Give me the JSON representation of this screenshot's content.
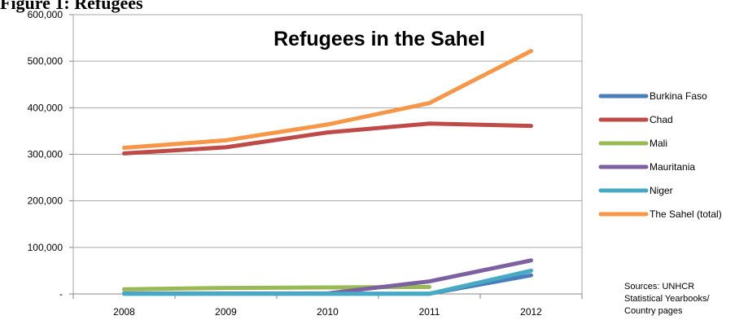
{
  "figure_heading": "Figure 1: Refugees",
  "sources": {
    "line1": "Sources: UNHCR",
    "line2": "Statistical Yearbooks/",
    "line3": "Country pages"
  },
  "chart_data": {
    "type": "line",
    "title": "Refugees in the Sahel",
    "xlabel": "",
    "ylabel": "",
    "categories": [
      "2008",
      "2009",
      "2010",
      "2011",
      "2012"
    ],
    "ylim": [
      0,
      600000
    ],
    "yticks": [
      0,
      100000,
      200000,
      300000,
      400000,
      500000,
      600000
    ],
    "ytick_labels": [
      "-",
      "100,000",
      "200,000",
      "300,000",
      "400,000",
      "500,000",
      "600,000"
    ],
    "grid": true,
    "legend_position": "right",
    "series": [
      {
        "name": "Burkina Faso",
        "color": "#4a7ebb",
        "values": [
          500,
          500,
          600,
          600,
          40000
        ]
      },
      {
        "name": "Chad",
        "color": "#be4b48",
        "values": [
          302000,
          315000,
          347000,
          366000,
          361000
        ]
      },
      {
        "name": "Mali",
        "color": "#98b954",
        "values": [
          10000,
          13000,
          14000,
          15000,
          null
        ]
      },
      {
        "name": "Mauritania",
        "color": "#7d60a0",
        "values": [
          1000,
          1000,
          1000,
          27000,
          72000
        ]
      },
      {
        "name": "Niger",
        "color": "#46aac5",
        "values": [
          300,
          300,
          300,
          300,
          50000
        ]
      },
      {
        "name": "The Sahel (total)",
        "color": "#f79646",
        "values": [
          314000,
          330000,
          364000,
          410000,
          522000
        ]
      }
    ]
  }
}
